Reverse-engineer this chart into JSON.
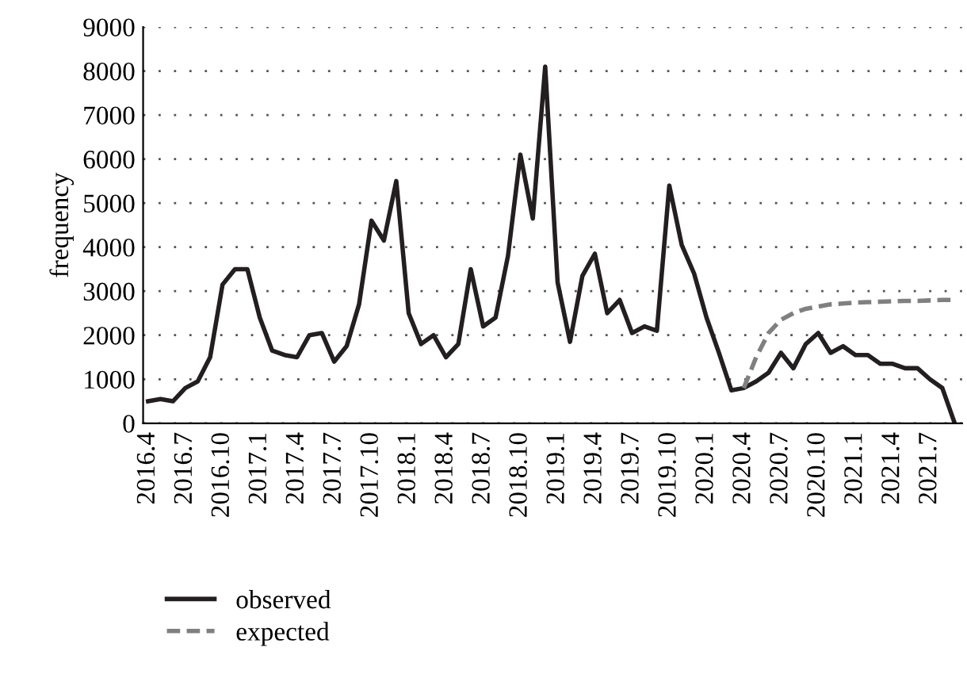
{
  "chart_data": {
    "type": "line",
    "categories": [
      "2016.4",
      null,
      null,
      "2016.7",
      null,
      null,
      "2016.10",
      null,
      null,
      "2017.1",
      null,
      null,
      "2017.4",
      null,
      null,
      "2017.7",
      null,
      null,
      "2017.10",
      null,
      null,
      "2018.1",
      null,
      null,
      "2018.4",
      null,
      null,
      "2018.7",
      null,
      null,
      "2018.10",
      null,
      null,
      "2019.1",
      null,
      null,
      "2019.4",
      null,
      null,
      "2019.7",
      null,
      null,
      "2019.10",
      null,
      null,
      "2020.1",
      null,
      null,
      "2020.4",
      null,
      null,
      "2020.7",
      null,
      null,
      "2020.10",
      null,
      null,
      "2021.1",
      null,
      null,
      "2021.4",
      null,
      null,
      "2021.7",
      null,
      null
    ],
    "ylabel": "frequency",
    "ylim": [
      0,
      9000
    ],
    "yticks": [
      0,
      1000,
      2000,
      3000,
      4000,
      5000,
      6000,
      7000,
      8000,
      9000
    ],
    "grid": "y",
    "legend": "bottom",
    "marker": "none",
    "series": [
      {
        "name": "observed",
        "color": "#231f20",
        "line_style": "solid",
        "values": [
          500,
          550,
          500,
          800,
          950,
          1500,
          3150,
          3500,
          3500,
          2400,
          1650,
          1550,
          1500,
          2000,
          2050,
          1400,
          1750,
          2700,
          4600,
          4150,
          5500,
          2500,
          1800,
          2000,
          1500,
          1800,
          3500,
          2200,
          2400,
          3800,
          6100,
          4650,
          8100,
          3200,
          1850,
          3350,
          3850,
          2500,
          2800,
          2050,
          2200,
          2100,
          5400,
          4050,
          3400,
          2400,
          1600,
          750,
          800,
          950,
          1150,
          1600,
          1250,
          1800,
          2050,
          1600,
          1750,
          1550,
          1550,
          1350,
          1350,
          1250,
          1250,
          1000,
          800,
          0
        ]
      },
      {
        "name": "expected",
        "color": "#808080",
        "line_style": "dashed",
        "values": [
          null,
          null,
          null,
          null,
          null,
          null,
          null,
          null,
          null,
          null,
          null,
          null,
          null,
          null,
          null,
          null,
          null,
          null,
          null,
          null,
          null,
          null,
          null,
          null,
          null,
          null,
          null,
          null,
          null,
          null,
          null,
          null,
          null,
          null,
          null,
          null,
          null,
          null,
          null,
          null,
          null,
          null,
          null,
          null,
          null,
          null,
          null,
          null,
          800,
          1500,
          2050,
          2350,
          2500,
          2600,
          2650,
          2700,
          2720,
          2740,
          2750,
          2760,
          2770,
          2780,
          2780,
          2790,
          2800,
          2800
        ]
      }
    ]
  }
}
